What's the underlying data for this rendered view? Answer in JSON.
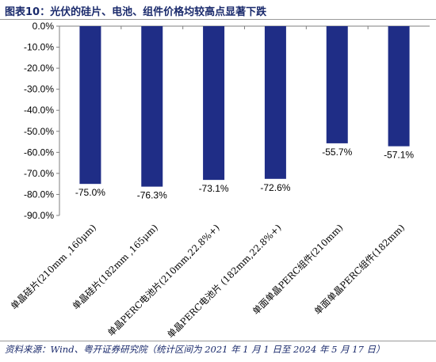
{
  "title": "图表10：光伏的硅片、电池、组件价格均较高点显著下跌",
  "source": "资料来源：Wind、粤开证券研究院（统计区间为 2021 年 1 月 1 日至 2024 年 5 月 17 日）",
  "colors": {
    "bar": "#1f2d86",
    "axis": "#7f7f7f",
    "title": "#1a2a6c"
  },
  "chart_data": {
    "type": "bar",
    "categories": [
      "单晶硅片(210mm ,160μm)",
      "单晶硅片(182mm ,165μm)",
      "单晶PERC电池片(210mm,22.8%+)",
      "单晶PERC电池片 (182mm,22.8%+)",
      "单面单晶PERC组件(210mm)",
      "单面单晶PERC组件(182mm)"
    ],
    "values": [
      -75.0,
      -76.3,
      -73.1,
      -72.6,
      -55.7,
      -57.1
    ],
    "data_labels": [
      "-75.0%",
      "-76.3%",
      "-73.1%",
      "-72.6%",
      "-55.7%",
      "-57.1%"
    ],
    "yticks": [
      "0.0%",
      "-10.0%",
      "-20.0%",
      "-30.0%",
      "-40.0%",
      "-50.0%",
      "-60.0%",
      "-70.0%",
      "-80.0%",
      "-90.0%"
    ],
    "ylim": [
      -90,
      0
    ],
    "grid": false,
    "legend": "none"
  }
}
